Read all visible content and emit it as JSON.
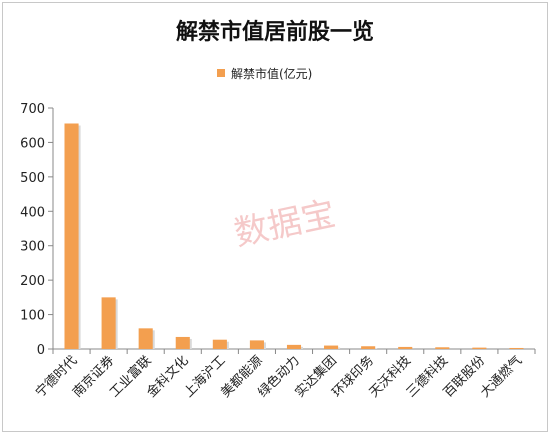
{
  "chart_data": {
    "type": "bar",
    "title": "解禁市值居前股一览",
    "legend": [
      {
        "name": "解禁市值(亿元)",
        "color": "#f39f4f"
      }
    ],
    "categories": [
      "宁德时代",
      "南京证券",
      "工业富联",
      "金科文化",
      "上海沪工",
      "美都能源",
      "绿色动力",
      "实达集团",
      "环球印务",
      "天沃科技",
      "三德科技",
      "百联股份",
      "大通燃气"
    ],
    "series": [
      {
        "name": "解禁市值(亿元)",
        "values": [
          655,
          150,
          60,
          35,
          27,
          25,
          12,
          10,
          8,
          6,
          5,
          4,
          3
        ]
      }
    ],
    "yticks": [
      "0",
      "100",
      "200",
      "300",
      "400",
      "500",
      "600",
      "700"
    ],
    "ylim": [
      0,
      700
    ],
    "grid": false,
    "legend_position": "top-center",
    "watermark": "数据宝"
  }
}
